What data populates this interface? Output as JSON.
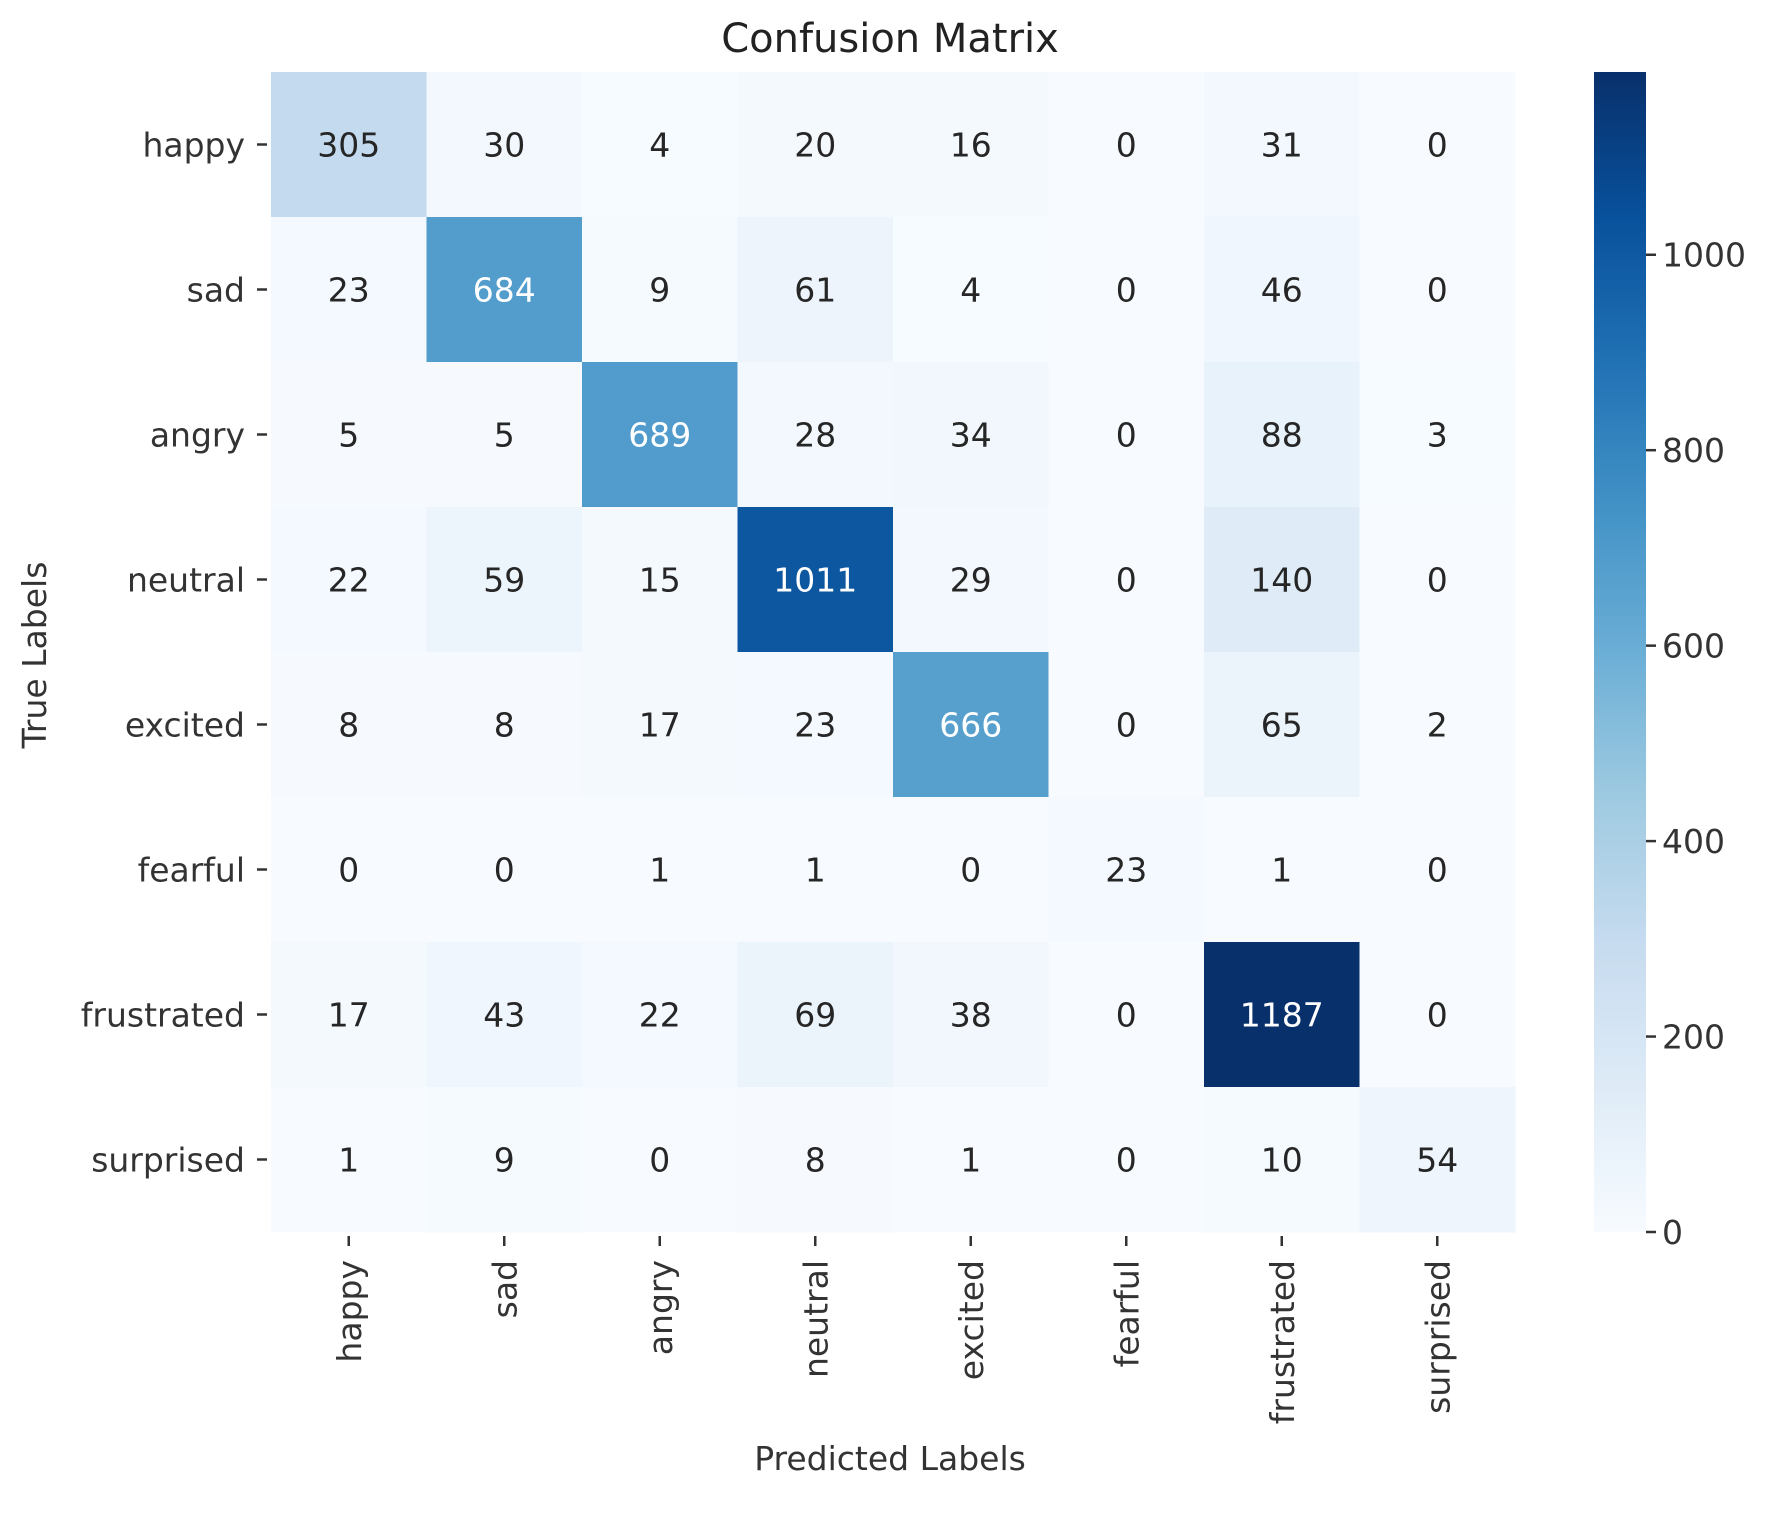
{
  "chart_data": {
    "type": "heatmap",
    "title": "Confusion Matrix",
    "xlabel": "Predicted Labels",
    "ylabel": "True Labels",
    "x_categories": [
      "happy",
      "sad",
      "angry",
      "neutral",
      "excited",
      "fearful",
      "frustrated",
      "surprised"
    ],
    "y_categories": [
      "happy",
      "sad",
      "angry",
      "neutral",
      "excited",
      "fearful",
      "frustrated",
      "surprised"
    ],
    "values": [
      [
        305,
        30,
        4,
        20,
        16,
        0,
        31,
        0
      ],
      [
        23,
        684,
        9,
        61,
        4,
        0,
        46,
        0
      ],
      [
        5,
        5,
        689,
        28,
        34,
        0,
        88,
        3
      ],
      [
        22,
        59,
        15,
        1011,
        29,
        0,
        140,
        0
      ],
      [
        8,
        8,
        17,
        23,
        666,
        0,
        65,
        2
      ],
      [
        0,
        0,
        1,
        1,
        0,
        23,
        1,
        0
      ],
      [
        17,
        43,
        22,
        69,
        38,
        0,
        1187,
        0
      ],
      [
        1,
        9,
        0,
        8,
        1,
        0,
        10,
        54
      ]
    ],
    "colormap": "Blues",
    "vmin": 0,
    "vmax": 1187,
    "colorbar_ticks": [
      0,
      200,
      400,
      600,
      800,
      1000
    ]
  }
}
